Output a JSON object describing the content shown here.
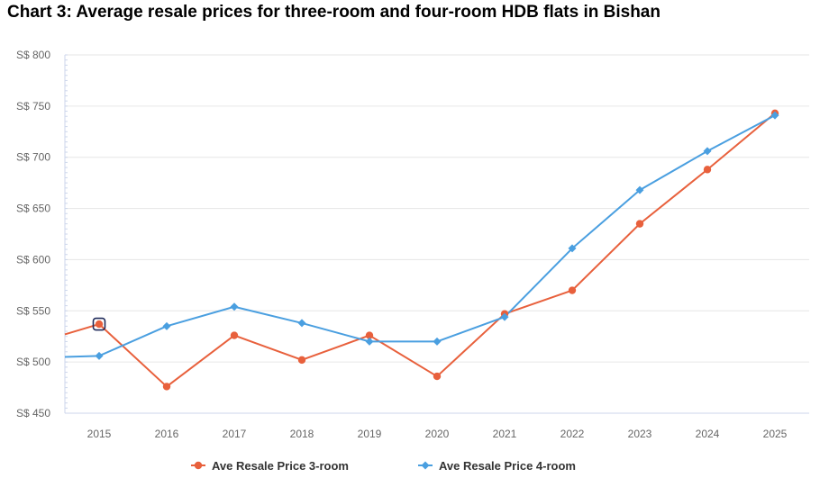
{
  "chart_data": {
    "type": "line",
    "title": "Chart 3: Average resale prices for three-room and four-room HDB flats in Bishan",
    "xlabel": "",
    "ylabel": "",
    "x": [
      "2015",
      "2016",
      "2017",
      "2018",
      "2019",
      "2020",
      "2021",
      "2022",
      "2023",
      "2024",
      "2025"
    ],
    "y_ticks": [
      "S$ 450",
      "S$ 500",
      "S$ 550",
      "S$ 600",
      "S$ 650",
      "S$ 700",
      "S$ 750",
      "S$ 800"
    ],
    "ylim": [
      450,
      800
    ],
    "grid": true,
    "legend_position": "bottom",
    "series": [
      {
        "name": "Ave Resale Price 3-room",
        "color": "#E8603C",
        "marker": "circle",
        "leading_value": 527,
        "values": [
          537,
          476,
          526,
          502,
          526,
          486,
          547,
          570,
          635,
          688,
          743
        ],
        "highlighted_index": 0
      },
      {
        "name": "Ave Resale Price 4-room",
        "color": "#4A9FE0",
        "marker": "diamond",
        "leading_value": 505,
        "values": [
          506,
          535,
          554,
          538,
          520,
          520,
          544,
          611,
          668,
          706,
          741
        ]
      }
    ]
  }
}
